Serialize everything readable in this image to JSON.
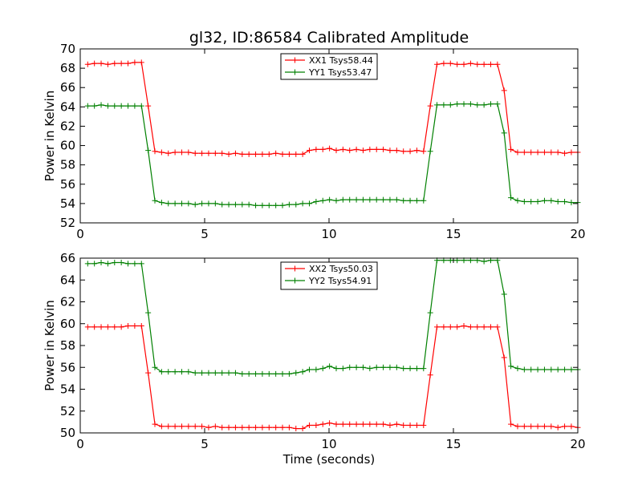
{
  "chart_data": [
    {
      "type": "line",
      "title": "gl32, ID:86584 Calibrated Amplitude",
      "xlabel": "",
      "ylabel": "Power in Kelvin",
      "xlim": [
        0,
        20
      ],
      "ylim": [
        52,
        70
      ],
      "xticks": [
        "0",
        "5",
        "10",
        "15",
        "20"
      ],
      "yticks": [
        "52",
        "54",
        "56",
        "58",
        "60",
        "62",
        "64",
        "66",
        "68",
        "70"
      ],
      "legend_position": "top-center",
      "x": [
        0.3,
        0.57,
        0.84,
        1.11,
        1.38,
        1.65,
        1.92,
        2.19,
        2.46,
        2.73,
        3.0,
        3.27,
        3.54,
        3.81,
        4.08,
        4.35,
        4.62,
        4.89,
        5.16,
        5.43,
        5.7,
        5.97,
        6.24,
        6.51,
        6.78,
        7.05,
        7.32,
        7.59,
        7.86,
        8.13,
        8.4,
        8.67,
        8.94,
        9.21,
        9.48,
        9.75,
        10.02,
        10.29,
        10.56,
        10.83,
        11.1,
        11.37,
        11.64,
        11.91,
        12.18,
        12.45,
        12.72,
        12.99,
        13.26,
        13.53,
        13.8,
        14.07,
        14.34,
        14.61,
        14.88,
        15.15,
        15.42,
        15.69,
        15.96,
        16.23,
        16.5,
        16.77,
        17.04,
        17.31,
        17.58,
        17.85,
        18.12,
        18.39,
        18.66,
        18.93,
        19.2,
        19.47,
        19.74,
        20.0
      ],
      "series": [
        {
          "name": "XX1 Tsys58.44",
          "color": "#ff0000",
          "values": [
            68.4,
            68.5,
            68.5,
            68.4,
            68.5,
            68.5,
            68.5,
            68.6,
            68.6,
            64.1,
            59.4,
            59.3,
            59.2,
            59.3,
            59.3,
            59.3,
            59.2,
            59.2,
            59.2,
            59.2,
            59.2,
            59.1,
            59.2,
            59.1,
            59.1,
            59.1,
            59.1,
            59.1,
            59.2,
            59.1,
            59.1,
            59.1,
            59.1,
            59.5,
            59.6,
            59.6,
            59.7,
            59.5,
            59.6,
            59.5,
            59.6,
            59.5,
            59.6,
            59.6,
            59.6,
            59.5,
            59.5,
            59.4,
            59.4,
            59.5,
            59.4,
            64.1,
            68.4,
            68.5,
            68.5,
            68.4,
            68.4,
            68.5,
            68.4,
            68.4,
            68.4,
            68.4,
            65.7,
            59.6,
            59.3,
            59.3,
            59.3,
            59.3,
            59.3,
            59.3,
            59.3,
            59.2,
            59.3,
            59.3
          ]
        },
        {
          "name": "YY1 Tsys53.47",
          "color": "#008000",
          "values": [
            64.1,
            64.1,
            64.2,
            64.1,
            64.1,
            64.1,
            64.1,
            64.1,
            64.1,
            59.5,
            54.3,
            54.1,
            54.0,
            54.0,
            54.0,
            54.0,
            53.9,
            54.0,
            54.0,
            54.0,
            53.9,
            53.9,
            53.9,
            53.9,
            53.9,
            53.8,
            53.8,
            53.8,
            53.8,
            53.8,
            53.9,
            53.9,
            54.0,
            54.0,
            54.2,
            54.3,
            54.4,
            54.3,
            54.4,
            54.4,
            54.4,
            54.4,
            54.4,
            54.4,
            54.4,
            54.4,
            54.4,
            54.3,
            54.3,
            54.3,
            54.3,
            59.4,
            64.2,
            64.2,
            64.2,
            64.3,
            64.3,
            64.3,
            64.2,
            64.2,
            64.3,
            64.3,
            61.3,
            54.6,
            54.3,
            54.2,
            54.2,
            54.2,
            54.3,
            54.3,
            54.2,
            54.2,
            54.1,
            54.1
          ]
        }
      ]
    },
    {
      "type": "line",
      "title": "",
      "xlabel": "Time (seconds)",
      "ylabel": "Power in Kelvin",
      "xlim": [
        0,
        20
      ],
      "ylim": [
        50,
        66
      ],
      "xticks": [
        "0",
        "5",
        "10",
        "15",
        "20"
      ],
      "yticks": [
        "50",
        "52",
        "54",
        "56",
        "58",
        "60",
        "62",
        "64",
        "66"
      ],
      "legend_position": "top-center",
      "x": [
        0.3,
        0.57,
        0.84,
        1.11,
        1.38,
        1.65,
        1.92,
        2.19,
        2.46,
        2.73,
        3.0,
        3.27,
        3.54,
        3.81,
        4.08,
        4.35,
        4.62,
        4.89,
        5.16,
        5.43,
        5.7,
        5.97,
        6.24,
        6.51,
        6.78,
        7.05,
        7.32,
        7.59,
        7.86,
        8.13,
        8.4,
        8.67,
        8.94,
        9.21,
        9.48,
        9.75,
        10.02,
        10.29,
        10.56,
        10.83,
        11.1,
        11.37,
        11.64,
        11.91,
        12.18,
        12.45,
        12.72,
        12.99,
        13.26,
        13.53,
        13.8,
        14.07,
        14.34,
        14.61,
        14.88,
        15.15,
        15.42,
        15.69,
        15.96,
        16.23,
        16.5,
        16.77,
        17.04,
        17.31,
        17.58,
        17.85,
        18.12,
        18.39,
        18.66,
        18.93,
        19.2,
        19.47,
        19.74,
        20.0
      ],
      "series": [
        {
          "name": "XX2 Tsys50.03",
          "color": "#ff0000",
          "values": [
            59.7,
            59.7,
            59.7,
            59.7,
            59.7,
            59.7,
            59.8,
            59.8,
            59.8,
            55.5,
            50.8,
            50.6,
            50.6,
            50.6,
            50.6,
            50.6,
            50.6,
            50.6,
            50.5,
            50.6,
            50.5,
            50.5,
            50.5,
            50.5,
            50.5,
            50.5,
            50.5,
            50.5,
            50.5,
            50.5,
            50.5,
            50.4,
            50.4,
            50.7,
            50.7,
            50.8,
            50.9,
            50.8,
            50.8,
            50.8,
            50.8,
            50.8,
            50.8,
            50.8,
            50.8,
            50.7,
            50.8,
            50.7,
            50.7,
            50.7,
            50.7,
            55.3,
            59.7,
            59.7,
            59.7,
            59.7,
            59.8,
            59.7,
            59.7,
            59.7,
            59.7,
            59.7,
            56.9,
            50.8,
            50.6,
            50.6,
            50.6,
            50.6,
            50.6,
            50.6,
            50.5,
            50.6,
            50.6,
            50.5
          ]
        },
        {
          "name": "YY2 Tsys54.91",
          "color": "#008000",
          "values": [
            65.5,
            65.5,
            65.6,
            65.5,
            65.6,
            65.6,
            65.5,
            65.5,
            65.5,
            61.0,
            56.0,
            55.6,
            55.6,
            55.6,
            55.6,
            55.6,
            55.5,
            55.5,
            55.5,
            55.5,
            55.5,
            55.5,
            55.5,
            55.4,
            55.4,
            55.4,
            55.4,
            55.4,
            55.4,
            55.4,
            55.4,
            55.5,
            55.6,
            55.8,
            55.8,
            55.9,
            56.1,
            55.9,
            55.9,
            56.0,
            56.0,
            56.0,
            55.9,
            56.0,
            56.0,
            56.0,
            56.0,
            55.9,
            55.9,
            55.9,
            55.9,
            61.0,
            65.8,
            65.8,
            65.8,
            65.8,
            65.8,
            65.8,
            65.8,
            65.7,
            65.8,
            65.8,
            62.7,
            56.1,
            55.9,
            55.8,
            55.8,
            55.8,
            55.8,
            55.8,
            55.8,
            55.8,
            55.8,
            55.8
          ]
        }
      ]
    }
  ]
}
